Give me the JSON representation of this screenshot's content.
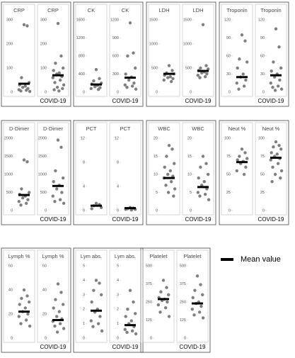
{
  "chart_data": [
    {
      "type": "strip",
      "title": "CRP",
      "ylim": [
        0,
        300
      ],
      "yticks": [
        0,
        100,
        200,
        300
      ],
      "values": [
        280,
        275,
        60,
        40,
        30,
        25,
        20,
        15,
        10,
        8,
        5,
        3
      ],
      "mean": 35
    },
    {
      "type": "strip",
      "title": "CRP",
      "xlabel": "COVID-19",
      "ylim": [
        0,
        300
      ],
      "yticks": [
        0,
        100,
        200,
        300
      ],
      "values": [
        285,
        150,
        120,
        100,
        90,
        80,
        75,
        65,
        60,
        50,
        40,
        30,
        20,
        15,
        10,
        5
      ],
      "mean": 70
    },
    {
      "type": "strip",
      "title": "CK",
      "ylim": [
        0,
        1600
      ],
      "yticks": [
        0,
        400,
        800,
        1200,
        1600
      ],
      "values": [
        500,
        300,
        250,
        200,
        180,
        150,
        120,
        100,
        80,
        60
      ],
      "mean": 170
    },
    {
      "type": "strip",
      "title": "CK",
      "xlabel": "COVID-19",
      "ylim": [
        0,
        1200
      ],
      "yticks": [
        0,
        300,
        600,
        900,
        1200
      ],
      "values": [
        1150,
        650,
        600,
        400,
        300,
        250,
        200,
        150,
        120,
        100,
        80,
        50
      ],
      "mean": 240
    },
    {
      "type": "strip",
      "title": "LDH",
      "ylim": [
        0,
        1500
      ],
      "yticks": [
        0,
        500,
        1000,
        1500
      ],
      "values": [
        550,
        450,
        400,
        380,
        350,
        320,
        300,
        280,
        250,
        220
      ],
      "mean": 380
    },
    {
      "type": "strip",
      "title": "LDH",
      "xlabel": "COVID-19",
      "ylim": [
        0,
        1500
      ],
      "yticks": [
        0,
        500,
        1000,
        1500
      ],
      "values": [
        1400,
        550,
        500,
        480,
        450,
        420,
        400,
        380,
        350,
        320,
        300
      ],
      "mean": 440
    },
    {
      "type": "strip",
      "title": "Troponin",
      "ylim": [
        0,
        120
      ],
      "yticks": [
        0,
        30,
        60,
        90,
        120
      ],
      "values": [
        95,
        85,
        55,
        50,
        40,
        30,
        25,
        20,
        15,
        10,
        5
      ],
      "mean": 25
    },
    {
      "type": "strip",
      "title": "Troponin",
      "xlabel": "COVID-19",
      "ylim": [
        0,
        120
      ],
      "yticks": [
        0,
        30,
        60,
        90,
        120
      ],
      "values": [
        105,
        75,
        50,
        40,
        35,
        30,
        25,
        20,
        15,
        10,
        8,
        5,
        3
      ],
      "mean": 28
    },
    {
      "type": "strip",
      "title": "D-Dimer",
      "ylim": [
        0,
        2000
      ],
      "yticks": [
        0,
        500,
        1000,
        1500,
        2000
      ],
      "values": [
        1400,
        1350,
        600,
        500,
        450,
        400,
        350,
        300,
        250,
        200,
        150
      ],
      "mean": 430
    },
    {
      "type": "strip",
      "title": "D-Dimer",
      "xlabel": "COVID-19",
      "ylim": [
        0,
        2000
      ],
      "yticks": [
        0,
        500,
        1000,
        1500,
        2000
      ],
      "values": [
        1950,
        1750,
        1100,
        900,
        800,
        700,
        600,
        500,
        400,
        300,
        250,
        200
      ],
      "mean": 680
    },
    {
      "type": "strip",
      "title": "PCT",
      "ylim": [
        0,
        12
      ],
      "yticks": [
        0,
        4,
        8,
        12
      ],
      "values": [
        1.2,
        1,
        0.8,
        0.5,
        0.3
      ],
      "mean": 0.8
    },
    {
      "type": "strip",
      "title": "PCT",
      "xlabel": "COVID-19",
      "ylim": [
        0,
        12
      ],
      "yticks": [
        0,
        4,
        8,
        12
      ],
      "values": [
        0.5,
        0.4,
        0.3,
        0.2,
        0.2,
        0.1
      ],
      "mean": 0.4
    },
    {
      "type": "strip",
      "title": "WBC",
      "ylim": [
        0,
        20
      ],
      "yticks": [
        0,
        5,
        10,
        15,
        20
      ],
      "values": [
        18,
        17,
        15,
        13,
        12,
        11,
        10,
        9.5,
        9,
        8,
        7,
        6,
        5,
        4
      ],
      "mean": 9
    },
    {
      "type": "strip",
      "title": "WBC",
      "xlabel": "COVID-19",
      "ylim": [
        0,
        20
      ],
      "yticks": [
        0,
        5,
        10,
        15,
        20
      ],
      "values": [
        15,
        13,
        12,
        10,
        9,
        8,
        7,
        6,
        5,
        4.5,
        4,
        3
      ],
      "mean": 6.5
    },
    {
      "type": "strip",
      "title": "Neut %",
      "ylim": [
        0,
        100
      ],
      "yticks": [
        0,
        25,
        50,
        75,
        100
      ],
      "values": [
        85,
        80,
        75,
        72,
        70,
        68,
        65,
        60,
        55,
        50
      ],
      "mean": 67
    },
    {
      "type": "strip",
      "title": "Neut %",
      "xlabel": "COVID-19",
      "ylim": [
        0,
        100
      ],
      "yticks": [
        0,
        25,
        50,
        75,
        100
      ],
      "values": [
        95,
        90,
        88,
        85,
        80,
        78,
        75,
        72,
        70,
        65,
        60,
        55,
        50,
        45,
        40
      ],
      "mean": 73
    },
    {
      "type": "strip",
      "title": "Lymph %",
      "ylim": [
        0,
        60
      ],
      "yticks": [
        0,
        20,
        40,
        60
      ],
      "values": [
        40,
        35,
        33,
        30,
        28,
        25,
        22,
        20,
        18,
        15,
        12,
        10
      ],
      "mean": 22
    },
    {
      "type": "strip",
      "title": "Lymph %",
      "xlabel": "COVID-19",
      "ylim": [
        0,
        60
      ],
      "yticks": [
        0,
        20,
        40,
        60
      ],
      "values": [
        45,
        38,
        32,
        28,
        25,
        22,
        18,
        16,
        14,
        12,
        10,
        8,
        5
      ],
      "mean": 15
    },
    {
      "type": "strip",
      "title": "Lym abs.",
      "ylim": [
        0,
        5
      ],
      "yticks": [
        0,
        1,
        2,
        3,
        4,
        5
      ],
      "values": [
        4,
        3.8,
        3.3,
        3,
        2.5,
        2,
        1.8,
        1.5,
        1.2,
        1,
        0.8,
        0.5
      ],
      "mean": 1.9
    },
    {
      "type": "strip",
      "title": "Lym abs.",
      "xlabel": "COVID-19",
      "ylim": [
        0,
        5
      ],
      "yticks": [
        0,
        1,
        2,
        3,
        4,
        5
      ],
      "values": [
        3.3,
        2.5,
        2,
        1.7,
        1.5,
        1.2,
        1,
        0.8,
        0.6,
        0.5,
        0.4,
        0.3
      ],
      "mean": 0.9
    },
    {
      "type": "strip",
      "title": "Platelet",
      "ylim": [
        0,
        500
      ],
      "yticks": [
        0,
        125,
        250,
        375,
        500
      ],
      "values": [
        400,
        350,
        320,
        300,
        280,
        270,
        260,
        250,
        230,
        210,
        180,
        150
      ],
      "mean": 270
    },
    {
      "type": "strip",
      "title": "Platelet",
      "xlabel": "COVID-19",
      "ylim": [
        0,
        500
      ],
      "yticks": [
        0,
        125,
        250,
        375,
        500
      ],
      "values": [
        430,
        370,
        330,
        300,
        280,
        250,
        240,
        220,
        200,
        180,
        160,
        140
      ],
      "mean": 240
    }
  ],
  "legend": {
    "label": "Mean value"
  }
}
